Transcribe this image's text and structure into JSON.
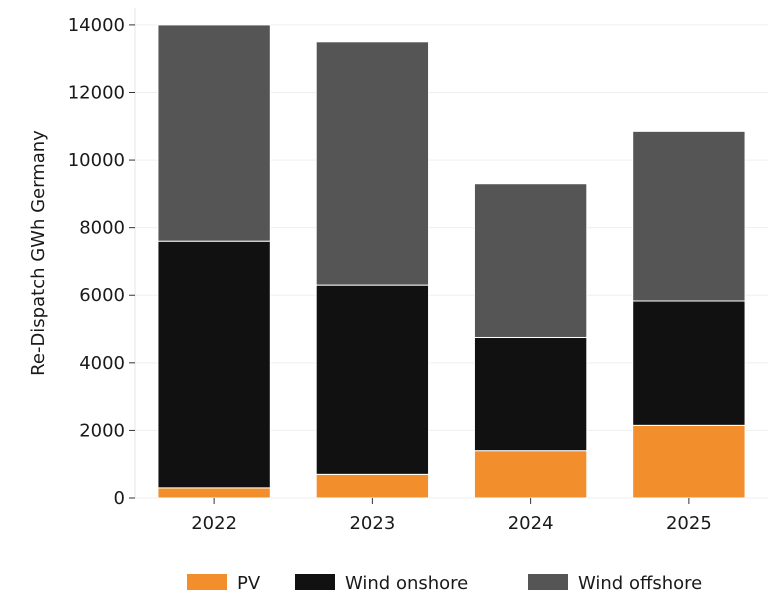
{
  "chart_data": {
    "type": "bar",
    "stacked": true,
    "title": "",
    "xlabel": "",
    "ylabel": "Re-Dispatch GWh Germany",
    "categories": [
      "2022",
      "2023",
      "2024",
      "2025"
    ],
    "ylim": [
      0,
      14500
    ],
    "yticks": [
      0,
      2000,
      4000,
      6000,
      8000,
      10000,
      12000,
      14000
    ],
    "grid": true,
    "legend_position": "bottom",
    "series": [
      {
        "name": "PV",
        "color": "#f28e2b",
        "values": [
          300,
          700,
          1400,
          2150
        ]
      },
      {
        "name": "Wind onshore",
        "color": "#111111",
        "values": [
          7300,
          5600,
          3350,
          3680
        ]
      },
      {
        "name": "Wind offshore",
        "color": "#555555",
        "values": [
          6400,
          7200,
          4550,
          5020
        ]
      }
    ]
  }
}
